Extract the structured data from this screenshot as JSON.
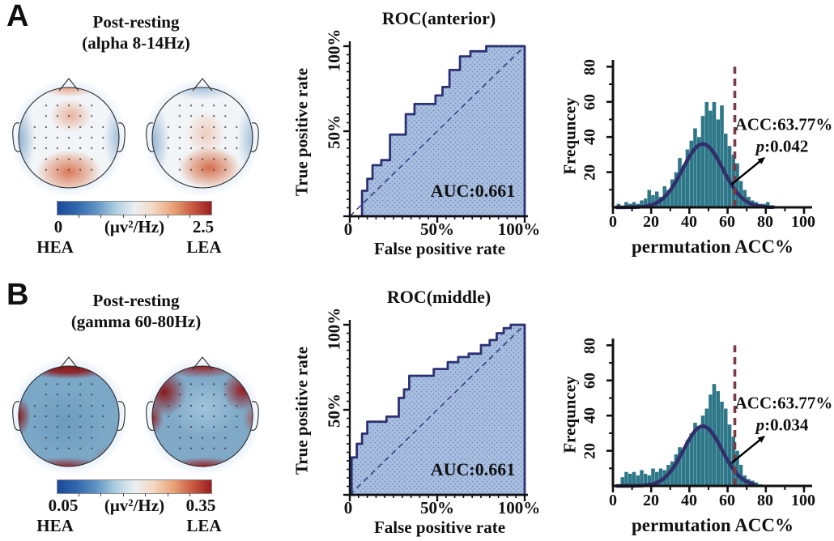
{
  "colors": {
    "roc_fill": "#a8bfe0",
    "roc_dot": "#3d4f9a",
    "roc_line": "#2c3172",
    "hist_bar": "#2d7788",
    "gauss_line": "#312e6b",
    "threshold_line": "#7a3b46",
    "arrow": "#000000",
    "axis": "#111111",
    "colorbar_left": "#1a4a97",
    "colorbar_right": "#9c1c20"
  },
  "panels": [
    {
      "label": "A",
      "topo": {
        "title1": "Post-resting",
        "title2": "(alpha 8-14Hz)",
        "cbar_min": "0",
        "cbar_max": "2.5",
        "cbar_units": "(μv²/Hz)",
        "left_group": "HEA",
        "right_group": "LEA"
      }
    },
    {
      "label": "B",
      "topo": {
        "title1": "Post-resting",
        "title2": "(gamma 60-80Hz)",
        "cbar_min": "0.05",
        "cbar_max": "0.35",
        "cbar_units": "(μv²/Hz)",
        "left_group": "HEA",
        "right_group": "LEA"
      }
    }
  ],
  "chart_data": [
    {
      "id": "roc_anterior",
      "type": "line",
      "title": "ROC(anterior)",
      "xlabel": "False positive rate",
      "ylabel": "True positive rate",
      "xlim": [
        0,
        100
      ],
      "ylim": [
        0,
        100
      ],
      "xtick_labels": [
        "0",
        "50%",
        "100%"
      ],
      "ytick_labels": [
        "50%",
        "100%"
      ],
      "auc_label": "AUC:0.661",
      "diagonal": true,
      "points": [
        [
          0,
          0
        ],
        [
          7,
          0
        ],
        [
          7,
          15
        ],
        [
          10,
          15
        ],
        [
          10,
          22
        ],
        [
          13,
          22
        ],
        [
          13,
          30
        ],
        [
          18,
          30
        ],
        [
          18,
          33
        ],
        [
          23,
          33
        ],
        [
          23,
          48
        ],
        [
          32,
          48
        ],
        [
          32,
          60
        ],
        [
          37,
          60
        ],
        [
          37,
          66
        ],
        [
          49,
          66
        ],
        [
          49,
          71
        ],
        [
          53,
          71
        ],
        [
          53,
          76
        ],
        [
          57,
          76
        ],
        [
          57,
          86
        ],
        [
          63,
          86
        ],
        [
          63,
          94
        ],
        [
          69,
          94
        ],
        [
          69,
          97
        ],
        [
          78,
          97
        ],
        [
          78,
          100
        ],
        [
          85,
          100
        ],
        [
          100,
          100
        ]
      ]
    },
    {
      "id": "perm_anterior",
      "type": "bar",
      "xlabel": "permutation ACC%",
      "ylabel": "Frequncey",
      "xlim": [
        0,
        100
      ],
      "ylim": [
        0,
        82
      ],
      "xtick_labels": [
        "0",
        "20",
        "40",
        "60",
        "80",
        "100"
      ],
      "ytick_labels": [
        "20",
        "40",
        "60",
        "80"
      ],
      "acc_label": "ACC:63.77%",
      "p_char": "p",
      "p_rest": ":0.042",
      "threshold": 63.77,
      "bin_start": 2,
      "bin_width": 2,
      "heights": [
        2,
        1,
        3,
        2,
        3,
        2,
        4,
        5,
        10,
        7,
        9,
        6,
        12,
        10,
        16,
        20,
        28,
        24,
        33,
        38,
        45,
        40,
        52,
        60,
        55,
        60,
        50,
        58,
        42,
        35,
        30,
        25,
        15,
        10,
        6,
        4,
        3,
        2,
        2,
        3
      ],
      "gauss": {
        "mean": 47,
        "sd": 10.5,
        "peak": 36,
        "range": [
          2,
          84
        ]
      },
      "arrow": {
        "from": [
          62,
          13
        ],
        "to": [
          79,
          28
        ]
      }
    },
    {
      "id": "roc_middle",
      "type": "line",
      "title": "ROC(middle)",
      "xlabel": "False positive rate",
      "ylabel": "True positive rate",
      "xlim": [
        0,
        100
      ],
      "ylim": [
        0,
        100
      ],
      "xtick_labels": [
        "0",
        "50%",
        "100%"
      ],
      "ytick_labels": [
        "50%",
        "100%"
      ],
      "auc_label": "AUC:0.661",
      "diagonal": true,
      "points": [
        [
          0,
          0
        ],
        [
          1,
          0
        ],
        [
          1,
          22
        ],
        [
          4,
          22
        ],
        [
          4,
          30
        ],
        [
          7,
          30
        ],
        [
          7,
          36
        ],
        [
          10,
          36
        ],
        [
          10,
          43
        ],
        [
          21,
          43
        ],
        [
          21,
          46
        ],
        [
          28,
          46
        ],
        [
          28,
          57
        ],
        [
          31,
          57
        ],
        [
          31,
          62
        ],
        [
          34,
          62
        ],
        [
          34,
          70
        ],
        [
          48,
          70
        ],
        [
          48,
          74
        ],
        [
          56,
          74
        ],
        [
          56,
          78
        ],
        [
          62,
          78
        ],
        [
          62,
          81
        ],
        [
          68,
          81
        ],
        [
          68,
          83
        ],
        [
          75,
          83
        ],
        [
          75,
          88
        ],
        [
          80,
          88
        ],
        [
          80,
          91
        ],
        [
          84,
          91
        ],
        [
          84,
          95
        ],
        [
          88,
          95
        ],
        [
          88,
          98
        ],
        [
          92,
          98
        ],
        [
          92,
          100
        ],
        [
          100,
          100
        ]
      ]
    },
    {
      "id": "perm_middle",
      "type": "bar",
      "xlabel": "permutation ACC%",
      "ylabel": "Frequncey",
      "xlim": [
        0,
        100
      ],
      "ylim": [
        0,
        82
      ],
      "xtick_labels": [
        "0",
        "20",
        "40",
        "60",
        "80",
        "100"
      ],
      "ytick_labels": [
        "20",
        "40",
        "60",
        "80"
      ],
      "acc_label": "ACC:63.77%",
      "p_char": "p",
      "p_rest": ":0.034",
      "threshold": 63.77,
      "bin_start": 2,
      "bin_width": 2,
      "heights": [
        1,
        5,
        8,
        7,
        8,
        6,
        9,
        7,
        6,
        10,
        8,
        10,
        9,
        12,
        14,
        18,
        22,
        20,
        26,
        30,
        36,
        33,
        40,
        44,
        52,
        58,
        54,
        48,
        44,
        35,
        28,
        20,
        12,
        6,
        4,
        3,
        2,
        1
      ],
      "gauss": {
        "mean": 47,
        "sd": 10,
        "peak": 34,
        "range": [
          2,
          74
        ]
      },
      "arrow": {
        "from": [
          62,
          13
        ],
        "to": [
          79,
          28
        ]
      }
    }
  ]
}
